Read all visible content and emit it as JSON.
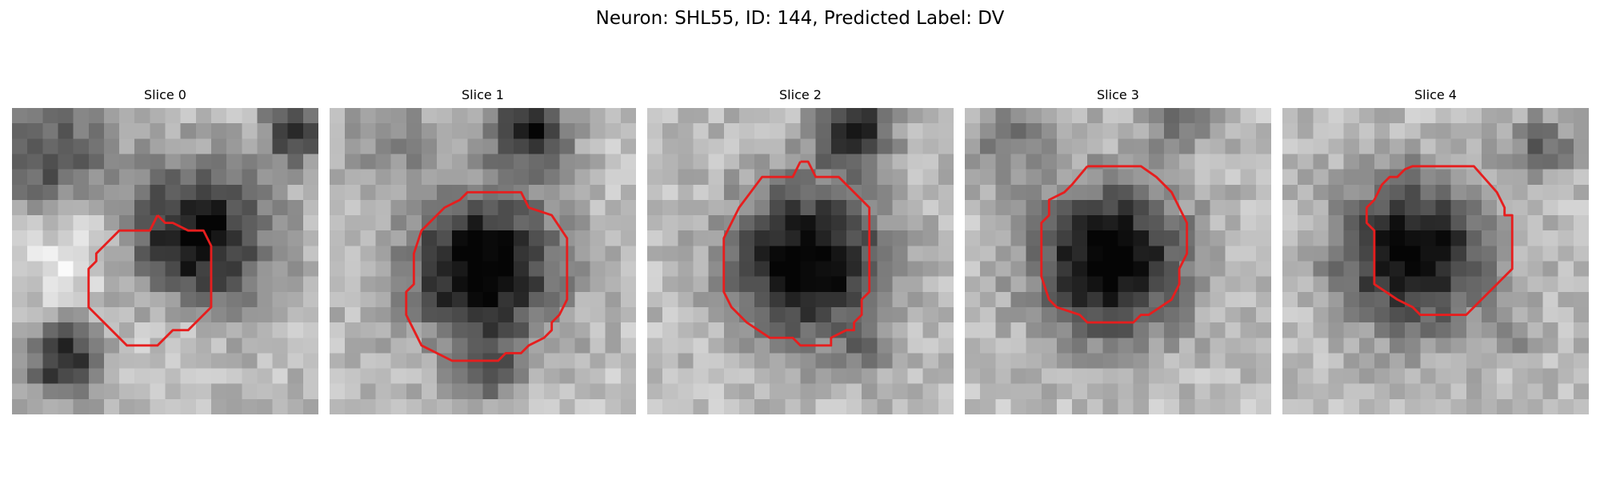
{
  "figure": {
    "title": "Neuron: SHL55, ID: 144, Predicted Label: DV"
  },
  "panels": [
    {
      "title": "Slice 0",
      "blobs": [
        {
          "r": 8.5,
          "c": 12,
          "s": 4.2,
          "a": 0.72
        },
        {
          "r": 3.5,
          "c": 2.5,
          "s": 3.5,
          "a": 0.45
        },
        {
          "r": 1.5,
          "c": 18.5,
          "s": 1.8,
          "a": 0.55
        },
        {
          "r": 16.5,
          "c": 3.5,
          "s": 2.2,
          "a": 0.62
        },
        {
          "r": 9,
          "c": 4,
          "s": 3.2,
          "a": -0.25
        },
        {
          "r": 14,
          "c": 10.5,
          "s": 2.6,
          "a": -0.15
        }
      ],
      "outline": [
        [
          9.5,
          7.0
        ],
        [
          10.0,
          7.5
        ],
        [
          10.5,
          7.5
        ],
        [
          11.5,
          8.0
        ],
        [
          12.5,
          8.0
        ],
        [
          13.0,
          9.0
        ],
        [
          13.0,
          13.0
        ],
        [
          11.5,
          14.5
        ],
        [
          10.5,
          14.5
        ],
        [
          9.5,
          15.5
        ],
        [
          7.5,
          15.5
        ],
        [
          5.5,
          13.5
        ],
        [
          5.0,
          13.0
        ],
        [
          5.0,
          10.5
        ],
        [
          5.5,
          10.0
        ],
        [
          5.5,
          9.5
        ],
        [
          7.0,
          8.0
        ],
        [
          9.0,
          8.0
        ],
        [
          9.5,
          7.0
        ]
      ]
    },
    {
      "title": "Slice 1",
      "blobs": [
        {
          "r": 10.5,
          "c": 10,
          "s": 4.3,
          "a": 0.8
        },
        {
          "r": 1.5,
          "c": 13,
          "s": 2.2,
          "a": 0.65
        },
        {
          "r": 17,
          "c": 10,
          "s": 1.8,
          "a": 0.38
        },
        {
          "r": 2,
          "c": 4,
          "s": 2.8,
          "a": 0.2
        }
      ],
      "outline": [
        [
          9.5,
          5.5
        ],
        [
          12.5,
          5.5
        ],
        [
          13.0,
          6.5
        ],
        [
          14.5,
          7.0
        ],
        [
          15.5,
          8.5
        ],
        [
          15.5,
          12.5
        ],
        [
          15.0,
          13.5
        ],
        [
          14.5,
          14.0
        ],
        [
          14.5,
          14.5
        ],
        [
          14.0,
          15.0
        ],
        [
          13.0,
          15.5
        ],
        [
          12.5,
          16.0
        ],
        [
          11.5,
          16.0
        ],
        [
          11.0,
          16.5
        ],
        [
          8.0,
          16.5
        ],
        [
          6.0,
          15.5
        ],
        [
          5.5,
          14.5
        ],
        [
          5.0,
          13.5
        ],
        [
          5.0,
          12.0
        ],
        [
          5.5,
          11.5
        ],
        [
          5.5,
          9.5
        ],
        [
          6.0,
          8.0
        ],
        [
          7.5,
          6.5
        ],
        [
          8.5,
          6.0
        ],
        [
          9.0,
          5.5
        ],
        [
          9.5,
          5.5
        ]
      ]
    },
    {
      "title": "Slice 2",
      "blobs": [
        {
          "r": 10,
          "c": 10.5,
          "s": 4.3,
          "a": 0.8
        },
        {
          "r": 1.5,
          "c": 13.5,
          "s": 2.1,
          "a": 0.68
        },
        {
          "r": 16,
          "c": 14,
          "s": 1.5,
          "a": 0.25
        }
      ],
      "outline": [
        [
          10.0,
          3.5
        ],
        [
          10.5,
          3.5
        ],
        [
          11.0,
          4.5
        ],
        [
          12.5,
          4.5
        ],
        [
          14.5,
          6.5
        ],
        [
          14.5,
          12.0
        ],
        [
          14.0,
          12.5
        ],
        [
          14.0,
          13.5
        ],
        [
          13.5,
          14.0
        ],
        [
          13.5,
          14.5
        ],
        [
          13.0,
          14.5
        ],
        [
          12.0,
          15.0
        ],
        [
          12.0,
          15.5
        ],
        [
          11.5,
          15.5
        ],
        [
          11.0,
          15.5
        ],
        [
          10.0,
          15.5
        ],
        [
          9.5,
          15.0
        ],
        [
          8.0,
          15.0
        ],
        [
          6.5,
          14.0
        ],
        [
          5.5,
          13.0
        ],
        [
          5.0,
          12.0
        ],
        [
          5.0,
          8.5
        ],
        [
          5.5,
          7.5
        ],
        [
          6.0,
          6.5
        ],
        [
          7.5,
          4.5
        ],
        [
          9.5,
          4.5
        ],
        [
          10.0,
          3.5
        ]
      ]
    },
    {
      "title": "Slice 3",
      "blobs": [
        {
          "r": 10,
          "c": 9.5,
          "s": 4.3,
          "a": 0.8
        },
        {
          "r": 2,
          "c": 3,
          "s": 2.3,
          "a": 0.28
        },
        {
          "r": 1,
          "c": 14,
          "s": 1.8,
          "a": 0.3
        }
      ],
      "outline": [
        [
          8.0,
          3.8
        ],
        [
          11.5,
          3.8
        ],
        [
          12.5,
          4.5
        ],
        [
          13.5,
          5.5
        ],
        [
          14.0,
          6.5
        ],
        [
          14.5,
          7.5
        ],
        [
          14.5,
          9.5
        ],
        [
          14.0,
          10.5
        ],
        [
          14.0,
          11.5
        ],
        [
          13.5,
          12.5
        ],
        [
          12.0,
          13.5
        ],
        [
          11.5,
          13.5
        ],
        [
          11.0,
          14.0
        ],
        [
          10.5,
          14.0
        ],
        [
          9.5,
          14.0
        ],
        [
          9.0,
          14.0
        ],
        [
          8.0,
          14.0
        ],
        [
          7.5,
          13.5
        ],
        [
          6.0,
          13.0
        ],
        [
          5.5,
          12.5
        ],
        [
          5.0,
          11.0
        ],
        [
          5.0,
          7.5
        ],
        [
          5.5,
          7.0
        ],
        [
          5.5,
          6.0
        ],
        [
          6.5,
          5.5
        ],
        [
          7.0,
          5.0
        ],
        [
          8.0,
          3.8
        ]
      ]
    },
    {
      "title": "Slice 4",
      "blobs": [
        {
          "r": 9.5,
          "c": 8.5,
          "s": 4.2,
          "a": 0.78
        },
        {
          "r": 2.5,
          "c": 17,
          "s": 1.8,
          "a": 0.35
        },
        {
          "r": 15,
          "c": 15,
          "s": 1.2,
          "a": 0.3
        }
      ],
      "outline": [
        [
          10.0,
          3.8
        ],
        [
          12.5,
          3.8
        ],
        [
          14.0,
          5.5
        ],
        [
          14.5,
          6.5
        ],
        [
          14.5,
          7.0
        ],
        [
          15.0,
          7.0
        ],
        [
          15.0,
          10.5
        ],
        [
          14.0,
          11.5
        ],
        [
          13.5,
          12.0
        ],
        [
          12.0,
          13.5
        ],
        [
          9.0,
          13.5
        ],
        [
          8.5,
          13.0
        ],
        [
          7.5,
          12.5
        ],
        [
          6.0,
          11.5
        ],
        [
          6.0,
          8.0
        ],
        [
          5.5,
          7.5
        ],
        [
          5.5,
          6.5
        ],
        [
          6.0,
          6.0
        ],
        [
          6.5,
          5.0
        ],
        [
          7.0,
          4.5
        ],
        [
          7.5,
          4.5
        ],
        [
          8.0,
          4.0
        ],
        [
          8.5,
          3.8
        ],
        [
          10.0,
          3.8
        ]
      ]
    }
  ],
  "colors": {
    "outline": "#e61e1e",
    "background": "#ffffff"
  }
}
